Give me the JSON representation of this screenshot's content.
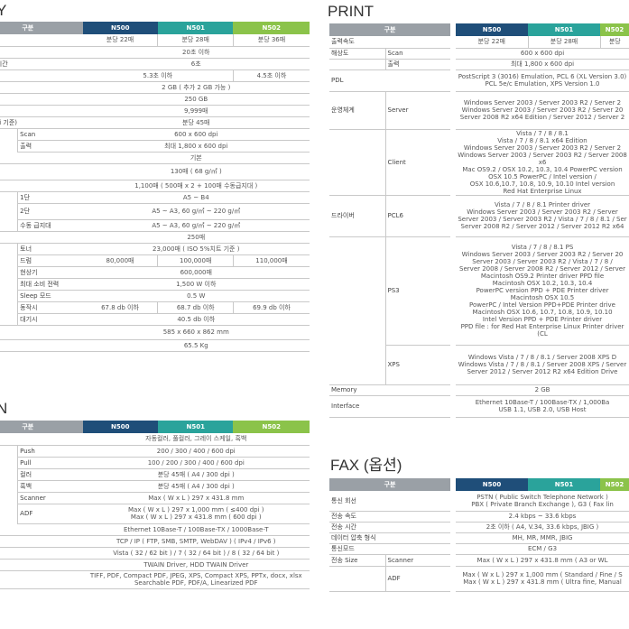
{
  "titles": {
    "left_top": "Y",
    "print": "PRINT",
    "left_bottom": "N",
    "fax": "FAX (옵션)"
  },
  "headers": {
    "gubun": "구분",
    "m1": "N500",
    "m2": "N501",
    "m3": "N502"
  },
  "colors": {
    "navy": "#1f4e79",
    "teal": "#2aa39b",
    "green": "#8bc34a",
    "gray": "#9aa0a6"
  },
  "copy_spec": [
    {
      "label": "",
      "sub": "",
      "v1": "분당 22매",
      "v2": "분당 28매",
      "v3": "분당 36매"
    },
    {
      "label": "",
      "sub": "",
      "span": "20초 이하"
    },
    {
      "label": "드 복귀 시간",
      "sub": "",
      "span": "6초"
    },
    {
      "label": "사 속도",
      "sub": "",
      "v12": "5.3초 이하",
      "v3": "4.5초 이하"
    },
    {
      "label": "",
      "sub": "",
      "span": "2 GB ( 추가 2 GB 가능 )"
    },
    {
      "label": "",
      "sub": "",
      "span": "250 GB"
    },
    {
      "label": "매수",
      "sub": "",
      "span": "9,999매"
    },
    {
      "label": "(300 dpi 기준)",
      "sub": "",
      "span": "분당 45매"
    },
    {
      "label": "",
      "sub": "Scan",
      "span": "600 x 600 dpi"
    },
    {
      "label": "",
      "sub": "출력",
      "span": "최대 1,800 x 600 dpi"
    },
    {
      "label": "",
      "sub": "",
      "span": "기본"
    },
    {
      "label": "적재",
      "sub": "",
      "span": "130매 ( 68 g/㎡ )"
    },
    {
      "label": "",
      "sub": "",
      "span": "1,100매 ( 500매 x 2 + 100매 수동급지대 )"
    },
    {
      "label": "",
      "sub": "1단",
      "span": "A5 ~ B4"
    },
    {
      "label": "",
      "sub": "2단",
      "span": "A5 ~ A3, 60 g/㎡ ~ 220 g/㎡"
    },
    {
      "label": "",
      "sub": "수동 급지대",
      "span": "A5 ~ A3, 60 g/㎡ ~ 220 g/㎡"
    },
    {
      "label": "이",
      "sub": "",
      "span": "250매"
    },
    {
      "label": "",
      "sub": "토너",
      "span": "23,000매 ( ISO 5%치트 기준 )"
    },
    {
      "label": "",
      "sub": "드럼",
      "v1": "80,000매",
      "v2": "100,000매",
      "v3": "110,000매"
    },
    {
      "label": "",
      "sub": "현상기",
      "span": "600,000매"
    },
    {
      "label": "",
      "sub": "최대 소비 전력",
      "span": "1,500 W 이하"
    },
    {
      "label": "",
      "sub": "Sleep 모드",
      "span": "0.5 W"
    },
    {
      "label": "",
      "sub": "동작시",
      "v1": "67.8 db 이하",
      "v2": "68.7 db 이하",
      "v3": "69.9 db 이하"
    },
    {
      "label": "",
      "sub": "대기시",
      "span": "40.5 db 이하"
    },
    {
      "label": "x D x H)",
      "sub": "",
      "span": "585 x 660 x 862 mm"
    },
    {
      "label": "",
      "sub": "",
      "span": "65.5 Kg"
    }
  ],
  "scan_spec": [
    {
      "label": "e",
      "sub": "",
      "span": "자동컬러, 풀컬러, 그레이 스케일, 흑백"
    },
    {
      "label": "",
      "sub": "Push",
      "span": "200 / 300 / 400 / 600 dpi"
    },
    {
      "label": "",
      "sub": "Pull",
      "span": "100 / 200 / 300 / 400 / 600 dpi"
    },
    {
      "label": "",
      "sub": "컬러",
      "span": "분당 45매 ( A4 / 300 dpi )"
    },
    {
      "label": "",
      "sub": "흑백",
      "span": "분당 45매 ( A4 / 300 dpi )"
    },
    {
      "label": "",
      "sub": "Scanner",
      "span": "Max ( W x L ) 297 x 431.8 mm"
    },
    {
      "label": "",
      "sub": "ADF",
      "span": "Max ( W x L ) 297 x 1,000 mm ( ≤400 dpi )\nMax ( W x L ) 297 x 431.8 mm ( 600 dpi )"
    },
    {
      "label": "",
      "sub": "",
      "span": "Ethernet 10Base-T / 100Base-TX / 1000Base-T"
    },
    {
      "label": "",
      "sub": "",
      "span": "TCP / IP ( FTP, SMB, SMTP, WebDAV ) ( IPv4 / IPv6 )"
    },
    {
      "label": "",
      "sub": "",
      "span": "Vista ( 32 / 62 bit ) / 7 ( 32 / 64 bit ) / 8 ( 32 / 64 bit )"
    },
    {
      "label": "",
      "sub": "",
      "span": "TWAIN Driver, HDD TWAIN Driver"
    },
    {
      "label": "것",
      "sub": "",
      "span": "TIFF, PDF, Compact PDF, JPEG, XPS, Compact XPS, PPTx, docx, xlsx\nSearchable PDF, PDF/A, Linearized PDF"
    }
  ],
  "print_spec": [
    {
      "label": "출력속도",
      "sub": "",
      "v1": "분당 22매",
      "v2": "분당 28매",
      "v3": "분당"
    },
    {
      "label": "해상도",
      "sub": "Scan",
      "span": "600 x 600 dpi"
    },
    {
      "label": "",
      "sub": "출력",
      "span": "최대 1,800 x 600 dpi"
    },
    {
      "label": "PDL",
      "sub": "",
      "span": "PostScript 3 (3016) Emulation, PCL 6 (XL Version 3.0)\nPCL 5e/c Emulation, XPS Version 1.0"
    },
    {
      "label": "운영체계",
      "sub": "Server",
      "span": "Windows Server 2003 / Server 2003 R2 / Server 2\nWindows Server 2003 / Server 2003 R2 / Server 20\nServer 2008 R2 x64 Edition / Server 2012 / Server 2"
    },
    {
      "label": "",
      "sub": "Client",
      "span": "Vista / 7 / 8 / 8.1\nVista / 7 / 8 / 8.1 x64 Edition\nWindows Server 2003 / Server 2003 R2 / Server 2\nWindows Server 2003 / Server 2003 R2 / Server 2008 x6\nMac OS9.2 / OSX 10.2, 10.3, 10.4 PowerPC version\nOSX 10.5 PowerPC / Intel version /\nOSX 10.6,10.7, 10.8, 10.9, 10.10 Intel version\nRed Hat Enterprise Linux"
    },
    {
      "label": "드라이버",
      "sub": "PCL6",
      "span": "Vista / 7 / 8 / 8.1 Printer driver\nWindows Server 2003 / Server 2003 R2 / Server\nServer 2003 / Server 2003 R2 / Vista / 7 / 8 / 8.1 / Ser\nServer 2008 R2 / Server 2012 / Server 2012 R2 x64"
    },
    {
      "label": "",
      "sub": "PS3",
      "span": "Vista / 7 / 8 / 8.1 PS\nWindows Server 2003 / Server 2003 R2 / Server 20\nServer 2003 / Server 2003 R2 / Vista / 7 / 8 /\nServer 2008 / Server 2008 R2 / Server 2012 / Server\nMacintosh OS9.2 Printer driver PPD file\nMacintosh OSX 10.2, 10.3, 10.4\nPowerPC version PPD + PDE Printer driver\nMacintosh OSX 10.5\nPowerPC / Intel Version PPD+PDE Printer drive\nMacintosh OSX 10.6, 10.7, 10.8, 10.9, 10.10\nIntel Version PPD + PDE Printer driver\nPPD file : for Red Hat Enterprise Linux Printer driver (CL"
    },
    {
      "label": "",
      "sub": "XPS",
      "span": "Windows Vista / 7 / 8 / 8.1 / Server 2008 XPS D\nWindows Vista / 7 / 8 / 8.1 / Server 2008 XPS / Server\nServer 2012 / Server 2012 R2 x64 Edition Drive"
    },
    {
      "label": "Memory",
      "sub": "",
      "span": "2 GB"
    },
    {
      "label": "Interface",
      "sub": "",
      "span": "Ethernet 10Base-T / 100Base-TX / 1,000Ba\nUSB 1.1, USB 2.0, USB Host"
    }
  ],
  "fax_spec": [
    {
      "label": "통신 회선",
      "sub": "",
      "span": "PSTN ( Public Switch Telephone Network )\nPBX ( Private Branch Exchange ), G3 ( Fax lin"
    },
    {
      "label": "전송 속도",
      "sub": "",
      "span": "2.4 kbps ~ 33.6 kbps"
    },
    {
      "label": "전송 시간",
      "sub": "",
      "span": "2초 이하 ( A4, V.34, 33.6 kbps, JBIG )"
    },
    {
      "label": "데이터 압축 형식",
      "sub": "",
      "span": "MH, MR, MMR, JBIG"
    },
    {
      "label": "통신모드",
      "sub": "",
      "span": "ECM / G3"
    },
    {
      "label": "전송 Size",
      "sub": "Scanner",
      "span": "Max ( W x L ) 297 x 431.8 mm ( A3 or WL"
    },
    {
      "label": "",
      "sub": "ADF",
      "span": "Max ( W x L ) 297 x 1,000 mm ( Standard / Fine / S\nMax ( W x L ) 297 x 431.8 mm ( Ultra fine, Manual"
    }
  ]
}
